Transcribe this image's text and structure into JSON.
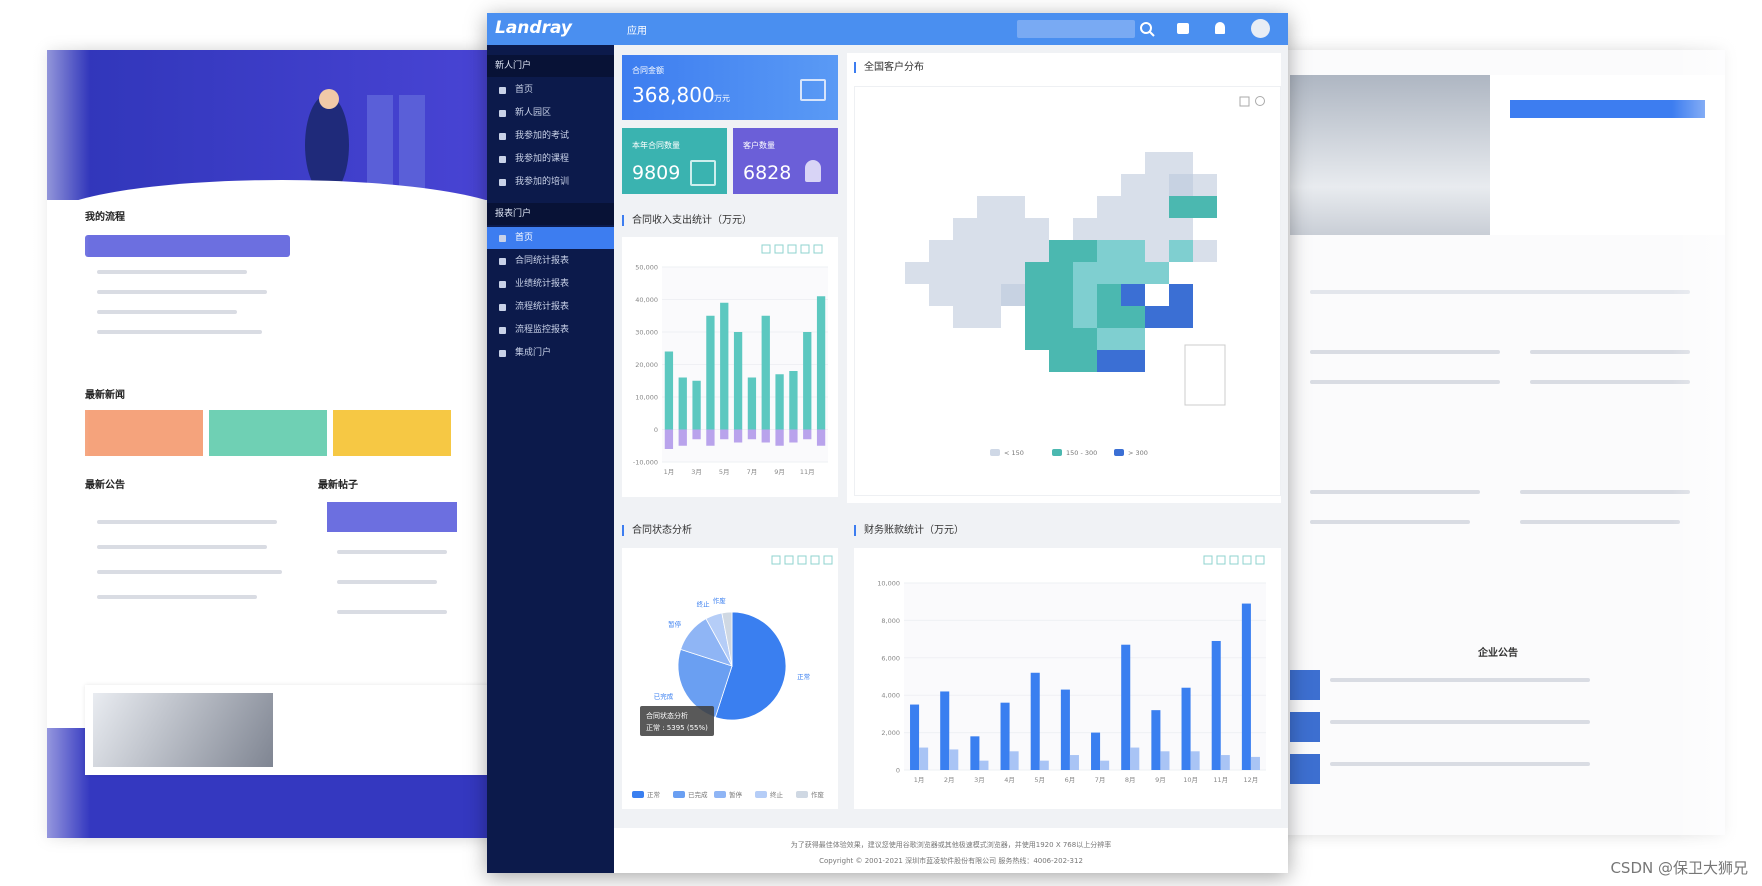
{
  "header": {
    "logo": "Landray",
    "app_menu": "应用"
  },
  "sidebar": {
    "sections": [
      {
        "title": "新人门户",
        "items": [
          "首页",
          "新人园区",
          "我参加的考试",
          "我参加的课程",
          "我参加的培训"
        ]
      },
      {
        "title": "报表门户",
        "items": [
          "首页",
          "合同统计报表",
          "业绩统计报表",
          "流程统计报表",
          "流程监控报表",
          "集成门户"
        ]
      }
    ]
  },
  "cards": [
    {
      "label": "合同金额",
      "value": "368,800",
      "unit": "万元"
    },
    {
      "label": "本年合同数量",
      "value": "9809"
    },
    {
      "label": "客户数量",
      "value": "6828"
    }
  ],
  "income_chart": {
    "type": "bar",
    "title": "合同收入支出统计（万元）",
    "barmode": "relative",
    "categories": [
      "1月",
      null,
      "3月",
      null,
      "5月",
      null,
      "7月",
      null,
      "9月",
      null,
      "11月",
      null
    ],
    "series": [
      {
        "color": "#5cc8c0",
        "values": [
          24000,
          16000,
          15000,
          35000,
          39000,
          30000,
          16000,
          35000,
          17000,
          18000,
          30000,
          41000
        ]
      },
      {
        "color": "#b9a3ec",
        "values": [
          -6000,
          -5000,
          -3000,
          -5000,
          -3000,
          -4000,
          -3000,
          -4000,
          -5000,
          -4000,
          -3000,
          -5000
        ]
      }
    ],
    "ylim": [
      -10000,
      50000
    ],
    "yticks": [
      {
        "value": -10000,
        "label": "-10,000"
      },
      0,
      {
        "value": 10000,
        "label": "10,000"
      },
      {
        "value": 20000,
        "label": "20,000"
      },
      {
        "value": 30000,
        "label": "30,000"
      },
      {
        "value": 40000,
        "label": "40,000"
      },
      {
        "value": 50000,
        "label": "50,000"
      }
    ],
    "grid": true
  },
  "map_panel": {
    "title": "全国客户分布",
    "legend": [
      {
        "label": "< 150",
        "color": "#cfd8e6"
      },
      {
        "label": "150 - 300",
        "color": "#4bb8b0"
      },
      {
        "label": "> 300",
        "color": "#3b6fd4"
      }
    ]
  },
  "status_chart": {
    "type": "pie",
    "title": "合同状态分析",
    "categories": [
      "正常",
      "已完成",
      "暂停",
      "终止",
      "作废"
    ],
    "values": [
      5395,
      2452,
      1177,
      490,
      295
    ],
    "colors": [
      "#3a7ff0",
      "#6a9ff2",
      "#8fb5f5",
      "#b5cdf7",
      "#cfd8e3"
    ],
    "tooltip": [
      "合同状态分析",
      "正常 : 5395 (55%)"
    ]
  },
  "finance_chart": {
    "type": "bar",
    "title": "财务账款统计（万元）",
    "barmode": "group",
    "categories": [
      "1月",
      "2月",
      "3月",
      "4月",
      "5月",
      "6月",
      "7月",
      "8月",
      "9月",
      "10月",
      "11月",
      "12月"
    ],
    "series": [
      {
        "color": "#3a7ff0",
        "values": [
          3500,
          4200,
          1800,
          3600,
          5200,
          4300,
          2000,
          6700,
          3200,
          4400,
          6900,
          8900
        ]
      },
      {
        "color": "#a9c4f5",
        "values": [
          1200,
          1100,
          500,
          1000,
          500,
          800,
          500,
          1200,
          1000,
          1000,
          800,
          700
        ]
      }
    ],
    "ylim": [
      0,
      10000
    ],
    "yticks": [
      0,
      {
        "value": 2000,
        "label": "2,000"
      },
      {
        "value": 4000,
        "label": "4,000"
      },
      {
        "value": 6000,
        "label": "6,000"
      },
      {
        "value": 8000,
        "label": "8,000"
      },
      {
        "value": 10000,
        "label": "10,000"
      }
    ],
    "grid": true
  },
  "footer": [
    "为了获得最佳体验效果，建议您使用谷歌浏览器或其他极速模式浏览器，并使用1920 X 768以上分辨率",
    "Copyright © 2001-2021 深圳市蓝凌软件股份有限公司 服务热线：4006-202-312"
  ],
  "left_page": {
    "sections": [
      "我的流程",
      "最新新闻",
      "最新公告",
      "最新帖子"
    ]
  },
  "right_page": {
    "sections": [
      "企业公告"
    ]
  },
  "watermark": "CSDN @保卫大狮兄"
}
